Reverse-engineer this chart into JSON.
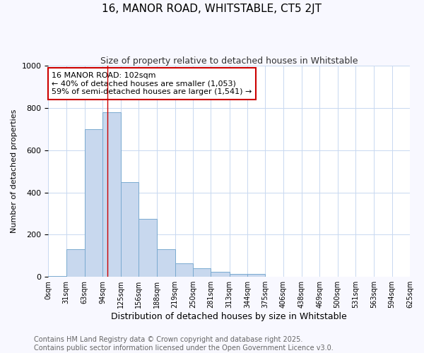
{
  "title": "16, MANOR ROAD, WHITSTABLE, CT5 2JT",
  "subtitle": "Size of property relative to detached houses in Whitstable",
  "xlabel": "Distribution of detached houses by size in Whitstable",
  "ylabel": "Number of detached properties",
  "bins": [
    0,
    31,
    63,
    94,
    125,
    156,
    188,
    219,
    250,
    281,
    313,
    344,
    375,
    406,
    438,
    469,
    500,
    531,
    563,
    594,
    625
  ],
  "values": [
    5,
    130,
    700,
    780,
    450,
    275,
    130,
    65,
    40,
    25,
    15,
    15,
    0,
    0,
    0,
    0,
    0,
    0,
    0,
    0
  ],
  "bar_color": "#c8d8ee",
  "bar_edge_color": "#7aaad0",
  "grid_color": "#c8d8f0",
  "background_color": "#ffffff",
  "fig_background_color": "#f8f8ff",
  "red_line_x": 102,
  "annotation_box_text": "16 MANOR ROAD: 102sqm\n← 40% of detached houses are smaller (1,053)\n59% of semi-detached houses are larger (1,541) →",
  "annotation_box_color": "#ffffff",
  "annotation_box_edge_color": "#cc0000",
  "ylim": [
    0,
    1000
  ],
  "xlim": [
    0,
    625
  ],
  "tick_labels": [
    "0sqm",
    "31sqm",
    "63sqm",
    "94sqm",
    "125sqm",
    "156sqm",
    "188sqm",
    "219sqm",
    "250sqm",
    "281sqm",
    "313sqm",
    "344sqm",
    "375sqm",
    "406sqm",
    "438sqm",
    "469sqm",
    "500sqm",
    "531sqm",
    "563sqm",
    "594sqm",
    "625sqm"
  ],
  "footer_text": "Contains HM Land Registry data © Crown copyright and database right 2025.\nContains public sector information licensed under the Open Government Licence v3.0.",
  "title_fontsize": 11,
  "subtitle_fontsize": 9,
  "ylabel_fontsize": 8,
  "xlabel_fontsize": 9,
  "tick_fontsize": 7,
  "annotation_fontsize": 8,
  "footer_fontsize": 7
}
